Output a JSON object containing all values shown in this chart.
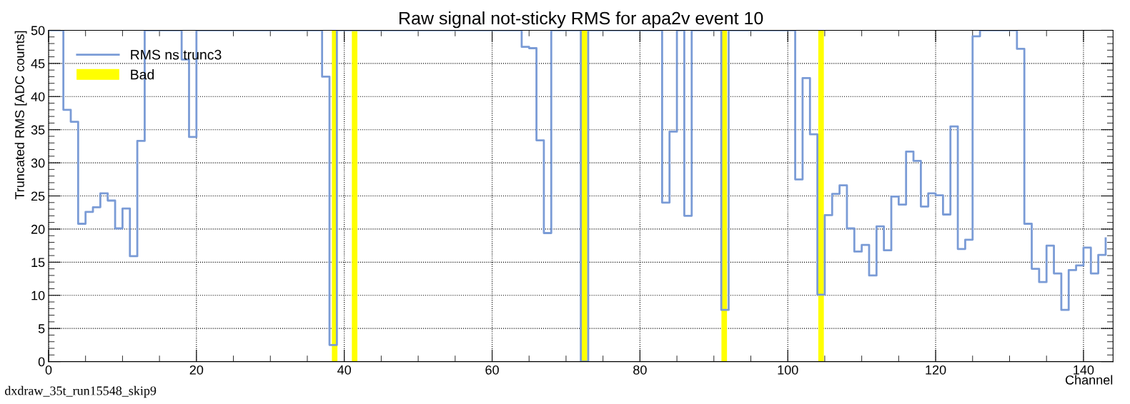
{
  "chart_data": {
    "type": "step",
    "title": "Raw signal not-sticky RMS for apa2v event 10",
    "xlabel": "Channel",
    "ylabel": "Truncated RMS [ADC counts]",
    "x": [
      0,
      1,
      2,
      3,
      4,
      5,
      6,
      7,
      8,
      9,
      10,
      11,
      12,
      13,
      14,
      15,
      16,
      17,
      18,
      19,
      20,
      21,
      22,
      23,
      24,
      25,
      26,
      27,
      28,
      29,
      30,
      31,
      32,
      33,
      34,
      35,
      36,
      37,
      38,
      39,
      40,
      41,
      42,
      43,
      44,
      45,
      46,
      47,
      48,
      49,
      50,
      51,
      52,
      53,
      54,
      55,
      56,
      57,
      58,
      59,
      60,
      61,
      62,
      63,
      64,
      65,
      66,
      67,
      68,
      69,
      70,
      71,
      72,
      73,
      74,
      75,
      76,
      77,
      78,
      79,
      80,
      81,
      82,
      83,
      84,
      85,
      86,
      87,
      88,
      89,
      90,
      91,
      92,
      93,
      94,
      95,
      96,
      97,
      98,
      99,
      100,
      101,
      102,
      103,
      104,
      105,
      106,
      107,
      108,
      109,
      110,
      111,
      112,
      113,
      114,
      115,
      116,
      117,
      118,
      119,
      120,
      121,
      122,
      123,
      124,
      125,
      126,
      127,
      128,
      129,
      130,
      131,
      132,
      133,
      134,
      135,
      136,
      137,
      138,
      139,
      140,
      141,
      142,
      143
    ],
    "series": [
      {
        "name": "RMS ns trunc3",
        "color": "#7a9bd6",
        "values": [
          50,
          50,
          38,
          36.2,
          20.8,
          22.6,
          23.3,
          25.4,
          24.3,
          20.1,
          23.1,
          15.9,
          33.3,
          50,
          50,
          50,
          50,
          50,
          45.6,
          33.9,
          50,
          50,
          50,
          50,
          50,
          50,
          50,
          50,
          50,
          50,
          50,
          50,
          50,
          50,
          50,
          50,
          50,
          43,
          2.5,
          50,
          50,
          50,
          50,
          50,
          50,
          50,
          50,
          50,
          50,
          50,
          50,
          50,
          50,
          50,
          50,
          50,
          50,
          50,
          50,
          50,
          50,
          50,
          50,
          50,
          47.5,
          47.3,
          33.4,
          19.4,
          50,
          50,
          50,
          50,
          0,
          50,
          50,
          50,
          50,
          50,
          50,
          50,
          50,
          50,
          50,
          24,
          34.7,
          50,
          22,
          50,
          50,
          50,
          50,
          7.8,
          50,
          50,
          50,
          50,
          50,
          50,
          50,
          50,
          50,
          27.5,
          42.8,
          34.3,
          10.1,
          22.1,
          25.3,
          26.6,
          20.1,
          16.6,
          17.6,
          13,
          20.4,
          16.8,
          24.9,
          23.7,
          31.7,
          30.3,
          23.4,
          25.4,
          25.1,
          22.2,
          35.5,
          17,
          18.4,
          49.1,
          50,
          50,
          50,
          50,
          50,
          47.2,
          20.8,
          14,
          12,
          17.5,
          13.3,
          7.8,
          13.8,
          14.5,
          17.2,
          13.3,
          16.1,
          18.6
        ]
      },
      {
        "name": "Bad",
        "type": "bar",
        "color": "#ffff00",
        "x": [
          38.7,
          41.4,
          72.5,
          91.4,
          104.5
        ],
        "values": [
          50,
          50,
          50,
          50,
          50
        ]
      }
    ],
    "xlim": [
      0,
      144
    ],
    "xticks": [
      0,
      20,
      40,
      60,
      80,
      100,
      120,
      140
    ],
    "ylim": [
      0,
      50
    ],
    "yticks": [
      0,
      5,
      10,
      15,
      20,
      25,
      30,
      35,
      40,
      45,
      50
    ],
    "grid": true,
    "legend": "top left",
    "annotations": [
      "dxdraw_35t_run15548_skip9"
    ]
  }
}
